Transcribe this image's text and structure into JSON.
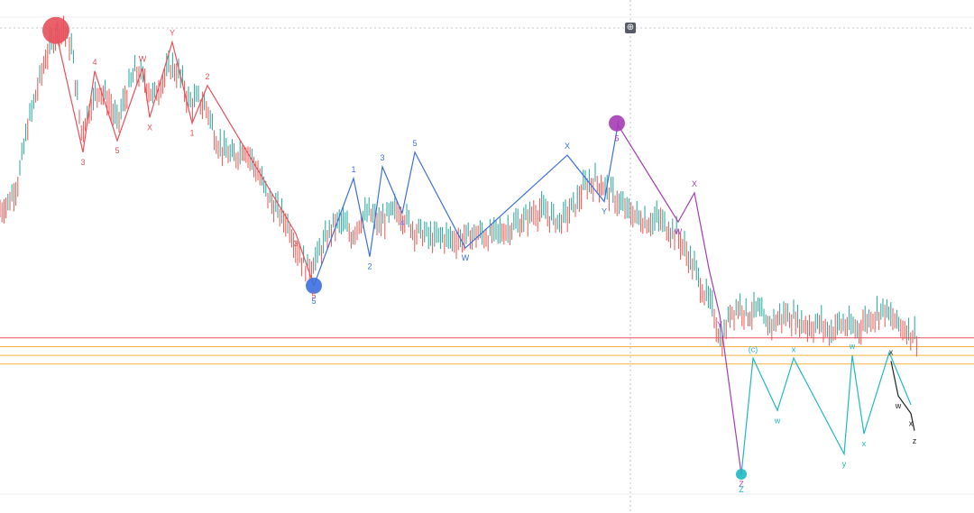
{
  "chart_data": {
    "type": "line",
    "title": "",
    "xlabel": "",
    "ylabel": "",
    "grid": false,
    "colors": {
      "price": "#26a69a",
      "price_down": "#ef5350",
      "red_wave": "#e8505b",
      "blue_wave": "#3d6fe0",
      "purple_wave": "#a63cb5",
      "cyan_wave": "#1fb8c4",
      "black_wave": "#222222",
      "level_red": "#e8505b",
      "level_orange": "#f5b041"
    },
    "price_series": {
      "x": [
        0,
        10,
        20,
        30,
        40,
        50,
        60,
        70,
        80,
        90,
        100,
        110,
        120,
        130,
        140,
        150,
        160,
        170,
        180,
        190,
        200,
        210,
        220,
        230,
        240,
        250,
        260,
        270,
        280,
        290,
        300,
        310,
        320,
        330,
        340,
        350,
        360,
        370,
        380,
        390,
        400,
        410,
        420,
        430,
        440,
        450,
        460,
        470,
        480,
        490,
        500,
        510,
        520,
        530,
        540,
        550,
        560,
        570,
        580,
        590,
        600,
        610,
        620,
        630,
        640,
        650,
        660,
        670,
        680,
        690,
        700,
        710,
        720,
        730,
        740,
        750,
        760,
        770,
        780,
        790,
        800,
        810,
        820,
        830,
        840,
        850,
        860,
        870,
        880,
        890,
        900,
        910,
        920,
        930,
        940,
        950,
        960,
        970,
        980,
        990,
        1000,
        1010,
        1020
      ],
      "y": [
        100,
        103,
        110,
        128,
        140,
        152,
        160,
        163,
        155,
        127,
        136,
        142,
        138,
        130,
        140,
        148,
        145,
        139,
        145,
        150,
        146,
        137,
        138,
        135,
        124,
        120,
        118,
        122,
        117,
        110,
        103,
        99,
        95,
        86,
        80,
        83,
        89,
        95,
        96,
        91,
        97,
        99,
        95,
        98,
        100,
        97,
        93,
        92,
        90,
        91,
        90,
        90,
        91,
        92,
        91,
        92,
        93,
        95,
        96,
        99,
        100,
        98,
        96,
        99,
        103,
        109,
        110,
        108,
        105,
        101,
        99,
        97,
        96,
        97,
        94,
        92,
        86,
        80,
        72,
        66,
        54,
        65,
        67,
        64,
        66,
        60,
        62,
        64,
        63,
        61,
        60,
        61,
        58,
        61,
        60,
        59,
        62,
        64,
        66,
        62,
        60,
        58,
        56
      ]
    },
    "waves": [
      {
        "name": "red",
        "color": "#e8505b",
        "points": [
          [
            63,
            160
          ],
          [
            92,
            120
          ],
          [
            105,
            148
          ],
          [
            130,
            124
          ],
          [
            158,
            149
          ],
          [
            166,
            132
          ],
          [
            191,
            158
          ],
          [
            213,
            130
          ],
          [
            230,
            143
          ],
          [
            328,
            92
          ],
          [
            348,
            74
          ]
        ],
        "labels": [
          "2",
          "3",
          "4",
          "5",
          "W",
          "X",
          "Y",
          "1",
          "2",
          "3",
          "5"
        ]
      },
      {
        "name": "blue",
        "color": "#3d6fe0",
        "points": [
          [
            348,
            74
          ],
          [
            392,
            111
          ],
          [
            410,
            84
          ],
          [
            424,
            115
          ],
          [
            446,
            99
          ],
          [
            460,
            120
          ],
          [
            516,
            87
          ],
          [
            629,
            119
          ],
          [
            670,
            103
          ],
          [
            686,
            131
          ]
        ],
        "labels": [
          "",
          "1",
          "2",
          "3",
          "4",
          "5",
          "W",
          "X",
          "Y",
          ""
        ]
      },
      {
        "name": "purple",
        "color": "#a63cb5",
        "points": [
          [
            684,
            130
          ],
          [
            720,
            112
          ],
          [
            752,
            96
          ],
          [
            770,
            106
          ],
          [
            786,
            80
          ],
          [
            798,
            64
          ],
          [
            822,
            9
          ]
        ],
        "labels": [
          "",
          "",
          "W",
          "X",
          "",
          "Y",
          "Z"
        ]
      },
      {
        "name": "cyan",
        "color": "#1fb8c4",
        "points": [
          [
            822,
            9
          ],
          [
            835,
            49
          ],
          [
            862,
            31
          ],
          [
            880,
            49
          ],
          [
            936,
            16
          ],
          [
            945,
            50
          ],
          [
            958,
            23
          ],
          [
            986,
            51
          ],
          [
            1010,
            33
          ]
        ],
        "labels": [
          "",
          "(c)",
          "w",
          "x",
          "y",
          "w",
          "x",
          "",
          ""
        ]
      },
      {
        "name": "black",
        "color": "#222222",
        "points": [
          [
            988,
            48
          ],
          [
            996,
            36
          ],
          [
            1010,
            30
          ],
          [
            1014,
            24
          ]
        ],
        "labels": [
          "x",
          "w",
          "x",
          "z"
        ]
      }
    ],
    "pivot_markers": [
      {
        "label": "2",
        "x": 62,
        "y": 162,
        "color": "#e8505b",
        "size": "large"
      },
      {
        "label": "5",
        "x": 348,
        "y": 74,
        "color": "#3d6fe0",
        "size": "medium"
      },
      {
        "label": "5",
        "x": 684,
        "y": 130,
        "color": "#a63cb5",
        "size": "medium"
      },
      {
        "label": "Z",
        "x": 822,
        "y": 9,
        "color": "#1fb8c4",
        "size": "small"
      }
    ],
    "horizontal_levels": [
      {
        "y": 56,
        "color": "#e8505b"
      },
      {
        "y": 53,
        "color": "#f5b041"
      },
      {
        "y": 50,
        "color": "#f5b041"
      },
      {
        "y": 47,
        "color": "#f5b041"
      }
    ],
    "ylim": [
      0,
      170
    ],
    "xlim": [
      0,
      1080
    ]
  },
  "ui": {
    "crosshair_icon": "crosshair-icon",
    "crosshair_symbol": "⊕"
  }
}
